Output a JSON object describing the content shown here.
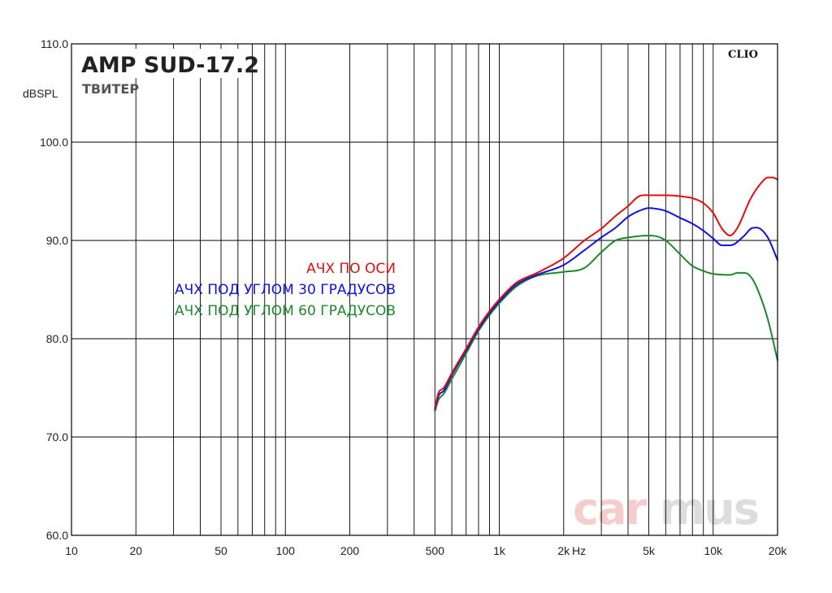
{
  "chart_data": {
    "type": "line",
    "title": "AMP SUD-17.2",
    "subtitle": "ТВИТЕР",
    "ylabel": "dBSPL",
    "xlabel": "Hz",
    "brand": "CLIO",
    "watermark": {
      "part1": "car",
      "part2": "mus"
    },
    "x_scale": "log",
    "xlim": [
      10,
      20000
    ],
    "ylim": [
      60,
      110
    ],
    "grid": true,
    "x_ticks": [
      {
        "v": 10,
        "label": "10"
      },
      {
        "v": 20,
        "label": "20"
      },
      {
        "v": 50,
        "label": "50"
      },
      {
        "v": 100,
        "label": "100"
      },
      {
        "v": 200,
        "label": "200"
      },
      {
        "v": 500,
        "label": "500"
      },
      {
        "v": 1000,
        "label": "1k"
      },
      {
        "v": 2000,
        "label": "2k"
      },
      {
        "v": 5000,
        "label": "5k"
      },
      {
        "v": 10000,
        "label": "10k"
      },
      {
        "v": 20000,
        "label": "20k"
      }
    ],
    "y_ticks": [
      {
        "v": 60,
        "label": "60.0"
      },
      {
        "v": 70,
        "label": "70.0"
      },
      {
        "v": 80,
        "label": "80.0"
      },
      {
        "v": 90,
        "label": "90.0"
      },
      {
        "v": 100,
        "label": "100.0"
      },
      {
        "v": 110,
        "label": "110.0"
      }
    ],
    "series": [
      {
        "name": "АЧХ ПО ОСИ",
        "color": "#e01010",
        "x": [
          500,
          520,
          550,
          600,
          700,
          800,
          900,
          1000,
          1200,
          1500,
          2000,
          2500,
          3000,
          3500,
          4000,
          4500,
          5000,
          6000,
          7000,
          8000,
          9000,
          10000,
          11000,
          12000,
          13000,
          15000,
          17000,
          18000,
          19000,
          20000
        ],
        "y": [
          73.0,
          74.5,
          75.0,
          76.5,
          79.0,
          81.2,
          82.8,
          84.0,
          85.7,
          86.7,
          88.2,
          90.0,
          91.2,
          92.5,
          93.5,
          94.5,
          94.6,
          94.6,
          94.5,
          94.3,
          93.8,
          92.8,
          91.2,
          90.5,
          91.3,
          94.3,
          96.0,
          96.4,
          96.4,
          96.2
        ]
      },
      {
        "name": "АЧХ ПОД УГЛОМ 30 ГРАДУСОВ",
        "color": "#1010e0",
        "x": [
          500,
          520,
          550,
          600,
          700,
          800,
          900,
          1000,
          1200,
          1500,
          2000,
          2500,
          3000,
          3500,
          4000,
          4500,
          5000,
          5500,
          6000,
          7000,
          8000,
          9000,
          10000,
          11000,
          12000,
          14000,
          15000,
          16000,
          18000,
          20000
        ],
        "y": [
          72.8,
          74.2,
          74.7,
          76.3,
          78.8,
          81.0,
          82.6,
          83.8,
          85.5,
          86.5,
          87.5,
          89.0,
          90.3,
          91.3,
          92.4,
          93.0,
          93.3,
          93.2,
          93.0,
          92.3,
          91.7,
          91.0,
          90.2,
          89.5,
          89.5,
          90.5,
          91.2,
          91.3,
          90.3,
          88.0
        ]
      },
      {
        "name": "АЧХ ПОД УГЛОМ 60 ГРАДУСОВ",
        "color": "#1a8a2a",
        "x": [
          500,
          520,
          550,
          600,
          700,
          800,
          900,
          1000,
          1200,
          1500,
          2000,
          2500,
          3000,
          3500,
          4000,
          5000,
          5500,
          6000,
          7000,
          8000,
          9000,
          10000,
          12000,
          13000,
          14000,
          15000,
          16000,
          18000,
          20000
        ],
        "y": [
          72.6,
          73.8,
          74.4,
          75.9,
          78.5,
          80.8,
          82.4,
          83.6,
          85.3,
          86.4,
          86.8,
          87.2,
          88.8,
          90.0,
          90.3,
          90.5,
          90.4,
          90.0,
          88.6,
          87.4,
          86.9,
          86.6,
          86.5,
          86.7,
          86.7,
          86.3,
          85.2,
          82.0,
          77.8
        ]
      }
    ]
  }
}
